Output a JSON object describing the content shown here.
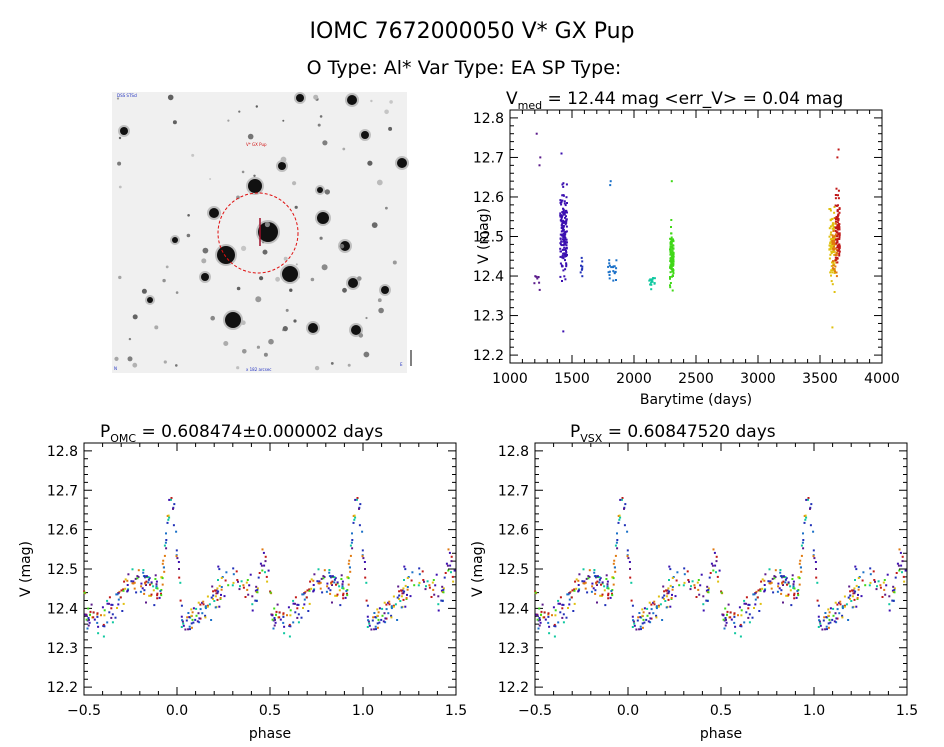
{
  "header": {
    "title": "IOMC 7672000050    V* GX Pup",
    "subtitle": "O Type: Al*  Var Type: EA  SP Type:"
  },
  "image_panel": {
    "top_left_label": "DSS STScI",
    "top_center_label": "V* GX Pup",
    "bottom_center_label": "x  182 arcsec",
    "bottom_left_label": "N",
    "bottom_right_label": "E",
    "circle_color": "#e01010"
  },
  "chart_data": [
    {
      "id": "lightcurve",
      "type": "scatter",
      "title_main": "V",
      "title_sub": "med",
      "title_rest": " = 12.44 mag <err_V> = 0.04 mag",
      "xlabel": "Barytime (days)",
      "ylabel": "V (mag)",
      "xlim": [
        1000,
        4000
      ],
      "ylim": [
        12.82,
        12.18
      ],
      "xticks": [
        "1000",
        "1500",
        "2000",
        "2500",
        "3000",
        "3500",
        "4000"
      ],
      "yticks": [
        "12.2",
        "12.3",
        "12.4",
        "12.5",
        "12.6",
        "12.7",
        "12.8"
      ],
      "groups": [
        {
          "name": "g1",
          "color": "#5a1a8a",
          "x_range": [
            1190,
            1250
          ],
          "y_range": [
            12.34,
            12.43
          ],
          "n": 8,
          "outliers": [
            [
              1215,
              12.76
            ],
            [
              1238,
              12.68
            ],
            [
              1244,
              12.7
            ]
          ]
        },
        {
          "name": "g2",
          "color": "#3b10b0",
          "x_range": [
            1405,
            1460
          ],
          "y_range": [
            12.31,
            12.71
          ],
          "n": 150,
          "outliers": [
            [
              1430,
              12.26
            ],
            [
              1415,
              12.71
            ]
          ]
        },
        {
          "name": "g3",
          "color": "#2030b8",
          "x_range": [
            1565,
            1585
          ],
          "y_range": [
            12.38,
            12.48
          ],
          "n": 8,
          "outliers": []
        },
        {
          "name": "g4",
          "color": "#1a70c8",
          "x_range": [
            1790,
            1860
          ],
          "y_range": [
            12.37,
            12.46
          ],
          "n": 20,
          "outliers": [
            [
              1808,
              12.63
            ],
            [
              1812,
              12.64
            ]
          ]
        },
        {
          "name": "g5",
          "color": "#10c8a0",
          "x_range": [
            2120,
            2170
          ],
          "y_range": [
            12.34,
            12.43
          ],
          "n": 15,
          "outliers": []
        },
        {
          "name": "g6",
          "color": "#40d818",
          "x_range": [
            2290,
            2320
          ],
          "y_range": [
            12.32,
            12.58
          ],
          "n": 110,
          "outliers": [
            [
              2305,
              12.64
            ]
          ]
        },
        {
          "name": "g7",
          "color": "#e0c010",
          "x_range": [
            3575,
            3620
          ],
          "y_range": [
            12.3,
            12.67
          ],
          "n": 80,
          "outliers": [
            [
              3600,
              12.27
            ]
          ]
        },
        {
          "name": "g8",
          "color": "#e07a10",
          "x_range": [
            3600,
            3640
          ],
          "y_range": [
            12.34,
            12.6
          ],
          "n": 50,
          "outliers": []
        },
        {
          "name": "g9",
          "color": "#c01818",
          "x_range": [
            3625,
            3660
          ],
          "y_range": [
            12.34,
            12.68
          ],
          "n": 90,
          "outliers": [
            [
              3650,
              12.72
            ],
            [
              3640,
              12.7
            ]
          ]
        }
      ]
    },
    {
      "id": "phase_omc",
      "type": "scatter",
      "title_main": "P",
      "title_sub": "OMC",
      "title_rest": " = 0.608474±0.000002 days",
      "xlabel": "phase",
      "ylabel": "V (mag)",
      "xlim": [
        -0.5,
        1.5
      ],
      "ylim": [
        12.82,
        12.18
      ],
      "xticks": [
        "−0.5",
        "0.0",
        "0.5",
        "1.0",
        "1.5"
      ],
      "yticks": [
        "12.2",
        "12.3",
        "12.4",
        "12.5",
        "12.6",
        "12.7",
        "12.8"
      ],
      "period_days": 0.608474,
      "n_points": 300
    },
    {
      "id": "phase_vsx",
      "type": "scatter",
      "title_main": "P",
      "title_sub": "VSX",
      "title_rest": " = 0.60847520 days",
      "xlabel": "phase",
      "ylabel": "V (mag)",
      "xlim": [
        -0.5,
        1.5
      ],
      "ylim": [
        12.82,
        12.18
      ],
      "xticks": [
        "−0.5",
        "0.0",
        "0.5",
        "1.0",
        "1.5"
      ],
      "yticks": [
        "12.2",
        "12.3",
        "12.4",
        "12.5",
        "12.6",
        "12.7",
        "12.8"
      ],
      "period_days": 0.6084752,
      "n_points": 300
    }
  ]
}
